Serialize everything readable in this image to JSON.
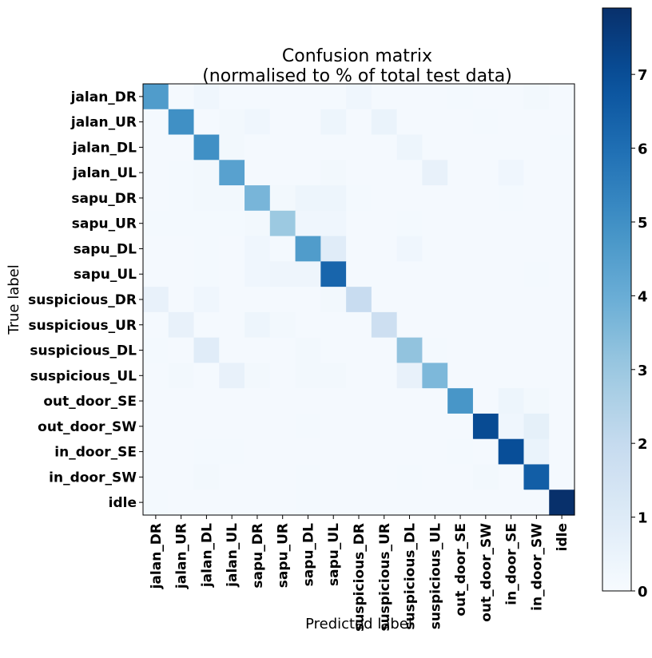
{
  "chart_data": {
    "type": "heatmap",
    "title_lines": [
      "Confusion matrix",
      "(normalised to % of total test data)"
    ],
    "xlabel": "Predicted label",
    "ylabel": "True label",
    "labels": [
      "jalan_DR",
      "jalan_UR",
      "jalan_DL",
      "jalan_UL",
      "sapu_DR",
      "sapu_UR",
      "sapu_DL",
      "sapu_UL",
      "suspicious_DR",
      "suspicious_UR",
      "suspicious_DL",
      "suspicious_UL",
      "out_door_SE",
      "out_door_SW",
      "in_door_SE",
      "in_door_SW",
      "idle"
    ],
    "colorbar": {
      "min": 0,
      "max": 7.9,
      "ticks": [
        "0",
        "1",
        "2",
        "3",
        "4",
        "5",
        "6",
        "7"
      ],
      "colormap": "Blues",
      "low_color": "#f7fbff",
      "high_color": "#08306b"
    },
    "matrix": [
      [
        4.6,
        0.1,
        0.3,
        0.1,
        0.1,
        0.1,
        0.1,
        0.1,
        0.3,
        0.1,
        0.1,
        0.1,
        0.15,
        0.1,
        0.1,
        0.2,
        0.1
      ],
      [
        0.1,
        5.0,
        0.1,
        0.2,
        0.3,
        0.1,
        0.1,
        0.4,
        0.1,
        0.5,
        0.1,
        0.1,
        0.1,
        0.15,
        0.1,
        0.1,
        0.1
      ],
      [
        0.1,
        0.1,
        5.0,
        0.2,
        0.1,
        0.1,
        0.1,
        0.1,
        0.1,
        0.1,
        0.4,
        0.1,
        0.1,
        0.1,
        0.1,
        0.1,
        0.15
      ],
      [
        0.1,
        0.15,
        0.2,
        4.4,
        0.1,
        0.1,
        0.1,
        0.2,
        0.1,
        0.1,
        0.1,
        0.6,
        0.1,
        0.1,
        0.3,
        0.1,
        0.1
      ],
      [
        0.1,
        0.15,
        0.2,
        0.2,
        3.7,
        0.2,
        0.4,
        0.4,
        0.15,
        0.1,
        0.1,
        0.1,
        0.1,
        0.1,
        0.15,
        0.1,
        0.1
      ],
      [
        0.15,
        0.15,
        0.15,
        0.15,
        0.2,
        3.0,
        0.3,
        0.3,
        0.1,
        0.1,
        0.15,
        0.1,
        0.1,
        0.1,
        0.1,
        0.1,
        0.1
      ],
      [
        0.1,
        0.1,
        0.15,
        0.1,
        0.3,
        0.15,
        4.6,
        0.9,
        0.1,
        0.1,
        0.3,
        0.1,
        0.1,
        0.1,
        0.1,
        0.1,
        0.1
      ],
      [
        0.1,
        0.1,
        0.15,
        0.1,
        0.3,
        0.35,
        0.35,
        6.3,
        0.1,
        0.1,
        0.1,
        0.1,
        0.1,
        0.1,
        0.1,
        0.15,
        0.1
      ],
      [
        0.6,
        0.1,
        0.3,
        0.1,
        0.1,
        0.1,
        0.1,
        0.2,
        1.9,
        0.1,
        0.1,
        0.1,
        0.1,
        0.1,
        0.1,
        0.1,
        0.1
      ],
      [
        0.1,
        0.6,
        0.1,
        0.1,
        0.4,
        0.2,
        0.1,
        0.1,
        0.1,
        1.7,
        0.1,
        0.1,
        0.1,
        0.1,
        0.1,
        0.1,
        0.1
      ],
      [
        0.15,
        0.1,
        0.9,
        0.1,
        0.1,
        0.1,
        0.2,
        0.1,
        0.1,
        0.1,
        3.2,
        0.15,
        0.1,
        0.1,
        0.1,
        0.1,
        0.1
      ],
      [
        0.1,
        0.2,
        0.1,
        0.6,
        0.2,
        0.1,
        0.2,
        0.2,
        0.1,
        0.1,
        0.6,
        3.6,
        0.1,
        0.1,
        0.1,
        0.1,
        0.1
      ],
      [
        0.1,
        0.1,
        0.1,
        0.1,
        0.1,
        0.1,
        0.1,
        0.1,
        0.1,
        0.1,
        0.1,
        0.1,
        4.8,
        0.1,
        0.4,
        0.2,
        0.1
      ],
      [
        0.1,
        0.1,
        0.1,
        0.1,
        0.1,
        0.1,
        0.15,
        0.1,
        0.1,
        0.1,
        0.1,
        0.1,
        0.1,
        7.1,
        0.3,
        0.7,
        0.1
      ],
      [
        0.1,
        0.1,
        0.15,
        0.15,
        0.1,
        0.1,
        0.1,
        0.1,
        0.1,
        0.1,
        0.1,
        0.1,
        0.15,
        0.1,
        7.0,
        0.5,
        0.1
      ],
      [
        0.1,
        0.1,
        0.2,
        0.1,
        0.1,
        0.1,
        0.15,
        0.1,
        0.1,
        0.1,
        0.15,
        0.1,
        0.1,
        0.2,
        0.1,
        6.5,
        0.1
      ],
      [
        0.15,
        0.1,
        0.1,
        0.1,
        0.1,
        0.1,
        0.15,
        0.1,
        0.1,
        0.1,
        0.1,
        0.1,
        0.1,
        0.1,
        0.1,
        0.1,
        7.9
      ]
    ]
  }
}
